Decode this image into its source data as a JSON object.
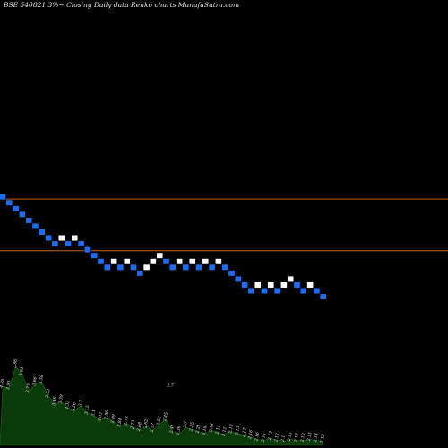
{
  "header": {
    "title": "BSE 540821 3%~  Closing Daily data  Renko  charts MunafaSutra.com"
  },
  "colors": {
    "background": "#000000",
    "up_brick": "#ffffff",
    "down_brick": "#1e6cf0",
    "reference_line": "#c0621a",
    "volume_area": "#0a3a0a",
    "volume_outline": "#1a6a1a"
  },
  "chart_data": {
    "type": "renko",
    "brick_size_percent": 3,
    "bricks": [
      {
        "col": 0,
        "level": 0,
        "dir": "down"
      },
      {
        "col": 1,
        "level": -1,
        "dir": "down"
      },
      {
        "col": 2,
        "level": -2,
        "dir": "down"
      },
      {
        "col": 3,
        "level": -3,
        "dir": "down"
      },
      {
        "col": 4,
        "level": -4,
        "dir": "down"
      },
      {
        "col": 5,
        "level": -5,
        "dir": "down"
      },
      {
        "col": 6,
        "level": -6,
        "dir": "down"
      },
      {
        "col": 7,
        "level": -7,
        "dir": "down"
      },
      {
        "col": 8,
        "level": -8,
        "dir": "down"
      },
      {
        "col": 9,
        "level": -7,
        "dir": "up"
      },
      {
        "col": 10,
        "level": -8,
        "dir": "down"
      },
      {
        "col": 11,
        "level": -7,
        "dir": "up"
      },
      {
        "col": 12,
        "level": -8,
        "dir": "down"
      },
      {
        "col": 13,
        "level": -9,
        "dir": "down"
      },
      {
        "col": 14,
        "level": -10,
        "dir": "down"
      },
      {
        "col": 15,
        "level": -11,
        "dir": "down"
      },
      {
        "col": 16,
        "level": -12,
        "dir": "down"
      },
      {
        "col": 17,
        "level": -11,
        "dir": "up"
      },
      {
        "col": 18,
        "level": -12,
        "dir": "down"
      },
      {
        "col": 19,
        "level": -11,
        "dir": "up"
      },
      {
        "col": 20,
        "level": -12,
        "dir": "down"
      },
      {
        "col": 21,
        "level": -13,
        "dir": "down"
      },
      {
        "col": 22,
        "level": -12,
        "dir": "up"
      },
      {
        "col": 23,
        "level": -11,
        "dir": "up"
      },
      {
        "col": 24,
        "level": -10,
        "dir": "up"
      },
      {
        "col": 25,
        "level": -11,
        "dir": "down"
      },
      {
        "col": 26,
        "level": -12,
        "dir": "down"
      },
      {
        "col": 27,
        "level": -11,
        "dir": "up"
      },
      {
        "col": 28,
        "level": -12,
        "dir": "down"
      },
      {
        "col": 29,
        "level": -11,
        "dir": "up"
      },
      {
        "col": 30,
        "level": -12,
        "dir": "down"
      },
      {
        "col": 31,
        "level": -11,
        "dir": "up"
      },
      {
        "col": 32,
        "level": -12,
        "dir": "down"
      },
      {
        "col": 33,
        "level": -11,
        "dir": "up"
      },
      {
        "col": 34,
        "level": -12,
        "dir": "down"
      },
      {
        "col": 35,
        "level": -13,
        "dir": "down"
      },
      {
        "col": 36,
        "level": -14,
        "dir": "down"
      },
      {
        "col": 37,
        "level": -15,
        "dir": "down"
      },
      {
        "col": 38,
        "level": -16,
        "dir": "down"
      },
      {
        "col": 39,
        "level": -15,
        "dir": "up"
      },
      {
        "col": 40,
        "level": -16,
        "dir": "down"
      },
      {
        "col": 41,
        "level": -15,
        "dir": "up"
      },
      {
        "col": 42,
        "level": -16,
        "dir": "down"
      },
      {
        "col": 43,
        "level": -15,
        "dir": "up"
      },
      {
        "col": 44,
        "level": -14,
        "dir": "up"
      },
      {
        "col": 45,
        "level": -15,
        "dir": "down"
      },
      {
        "col": 46,
        "level": -16,
        "dir": "down"
      },
      {
        "col": 47,
        "level": -15,
        "dir": "up"
      },
      {
        "col": 48,
        "level": -16,
        "dir": "down"
      },
      {
        "col": 49,
        "level": -17,
        "dir": "down"
      }
    ],
    "reference_lines": [
      {
        "label": "upper",
        "level": -0.1
      },
      {
        "label": "lower",
        "level": -8.9
      }
    ],
    "volume_labels": [
      "4.05",
      "3.93",
      "3.86",
      "3.81",
      "3.73",
      "3.66",
      "3.58",
      "3.52",
      "3.46",
      "3.39",
      "3.33",
      "3.26",
      "3.2",
      "3.15",
      "3.1",
      "3.03",
      "2.96",
      "2.89",
      "2.84",
      "2.79",
      "2.73",
      "2.68",
      "2.62",
      "2.57",
      "2.52",
      "2.45",
      "2.41",
      "2.36",
      "2.3",
      "2.25",
      "2.21",
      "2.18",
      "2.14",
      "2.11",
      "2.12",
      "2.13",
      "2.15",
      "2.17",
      "2.16",
      "2.16",
      "2.14",
      "2.13",
      "2.12",
      "2.1",
      "2.11",
      "2.13",
      "2.12",
      "2.11",
      "2.14",
      "2.12"
    ],
    "volume_values": [
      0.6,
      0.58,
      0.8,
      0.72,
      0.55,
      0.62,
      0.64,
      0.5,
      0.42,
      0.44,
      0.38,
      0.36,
      0.4,
      0.33,
      0.3,
      0.26,
      0.28,
      0.24,
      0.2,
      0.22,
      0.18,
      0.16,
      0.19,
      0.15,
      0.22,
      0.26,
      0.14,
      0.12,
      0.18,
      0.16,
      0.14,
      0.12,
      0.15,
      0.13,
      0.11,
      0.14,
      0.12,
      0.1,
      0.08,
      0.06,
      0.05,
      0.07,
      0.05,
      0.04,
      0.06,
      0.05,
      0.05,
      0.06,
      0.05,
      0.04
    ],
    "extra_marks": [
      "2.7"
    ]
  }
}
